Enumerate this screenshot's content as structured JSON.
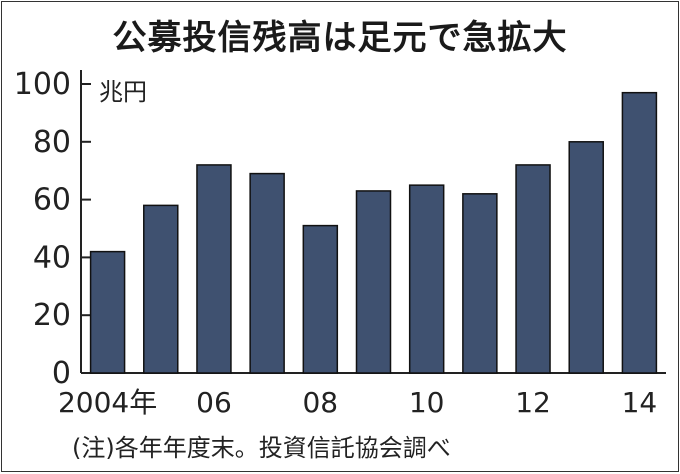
{
  "chart_data": {
    "type": "bar",
    "title": "公募投信残高は足元で急拡大",
    "unit": "兆円",
    "categories": [
      "2004",
      "2005",
      "2006",
      "2007",
      "2008",
      "2009",
      "2010",
      "2011",
      "2012",
      "2013",
      "2014"
    ],
    "x_tick_labels": [
      "2004年",
      "",
      "06",
      "",
      "08",
      "",
      "10",
      "",
      "12",
      "",
      "14"
    ],
    "values": [
      42,
      58,
      72,
      69,
      51,
      63,
      65,
      62,
      72,
      80,
      97
    ],
    "ylim": [
      0,
      100
    ],
    "y_ticks": [
      "0",
      "20",
      "40",
      "60",
      "80",
      "100"
    ],
    "grid": false,
    "bar_color": "#3f5170",
    "note": "(注)各年年度末。投資信託協会調べ"
  }
}
